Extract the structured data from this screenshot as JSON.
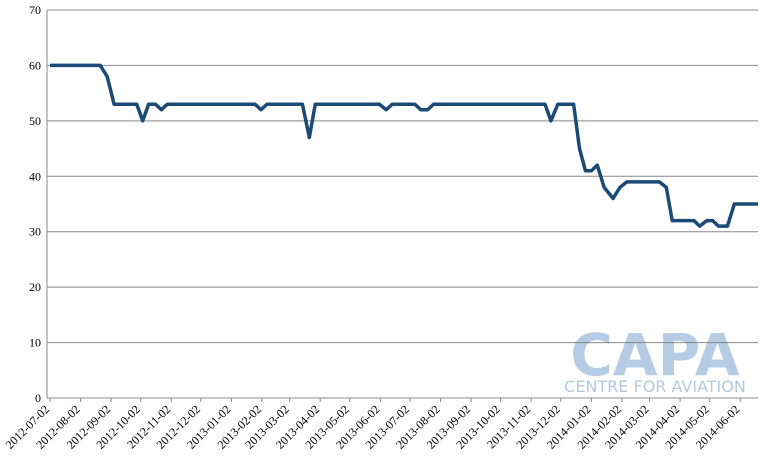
{
  "chart_data": {
    "type": "line",
    "x": [
      "2012-07-02",
      "2012-08-22",
      "2012-08-29",
      "2012-09-05",
      "2012-09-28",
      "2012-10-04",
      "2012-10-10",
      "2012-10-17",
      "2012-10-23",
      "2012-10-29",
      "2013-01-26",
      "2013-02-01",
      "2013-02-07",
      "2013-03-15",
      "2013-03-22",
      "2013-03-28",
      "2013-06-01",
      "2013-06-08",
      "2013-06-14",
      "2013-07-07",
      "2013-07-13",
      "2013-07-20",
      "2013-07-26",
      "2013-11-16",
      "2013-11-22",
      "2013-11-29",
      "2013-12-15",
      "2013-12-21",
      "2013-12-27",
      "2014-01-02",
      "2014-01-08",
      "2014-01-15",
      "2014-01-24",
      "2014-01-31",
      "2014-02-07",
      "2014-03-12",
      "2014-03-19",
      "2014-03-25",
      "2014-04-16",
      "2014-04-22",
      "2014-04-29",
      "2014-05-05",
      "2014-05-11",
      "2014-05-20",
      "2014-05-27",
      "2014-06-20"
    ],
    "series": [
      {
        "color": "#1b4a77",
        "values": [
          60,
          60,
          58,
          53,
          53,
          50,
          53,
          53,
          52,
          53,
          53,
          52,
          53,
          53,
          47,
          53,
          53,
          52,
          53,
          53,
          52,
          52,
          53,
          53,
          50,
          53,
          53,
          45,
          41,
          41,
          42,
          38,
          36,
          38,
          39,
          39,
          38,
          32,
          32,
          31,
          32,
          32,
          31,
          31,
          35,
          35
        ]
      }
    ],
    "xlim": [
      "2012-07-02",
      "2014-06-20"
    ],
    "xticks": [
      "2012-07-02",
      "2012-08-02",
      "2012-09-02",
      "2012-10-02",
      "2012-11-02",
      "2012-12-02",
      "2013-01-02",
      "2013-02-02",
      "2013-03-02",
      "2013-04-02",
      "2013-05-02",
      "2013-06-02",
      "2013-07-02",
      "2013-08-02",
      "2013-09-02",
      "2013-10-02",
      "2013-11-02",
      "2013-12-02",
      "2014-01-02",
      "2014-02-02",
      "2014-03-02",
      "2014-04-02",
      "2014-05-02",
      "2014-06-02"
    ],
    "ylim": [
      0,
      70
    ],
    "yticks": [
      0,
      10,
      20,
      30,
      40,
      50,
      60,
      70
    ],
    "grid": true
  },
  "watermark": {
    "logo": "CAPA",
    "tagline": "CENTRE FOR AVIATION"
  }
}
